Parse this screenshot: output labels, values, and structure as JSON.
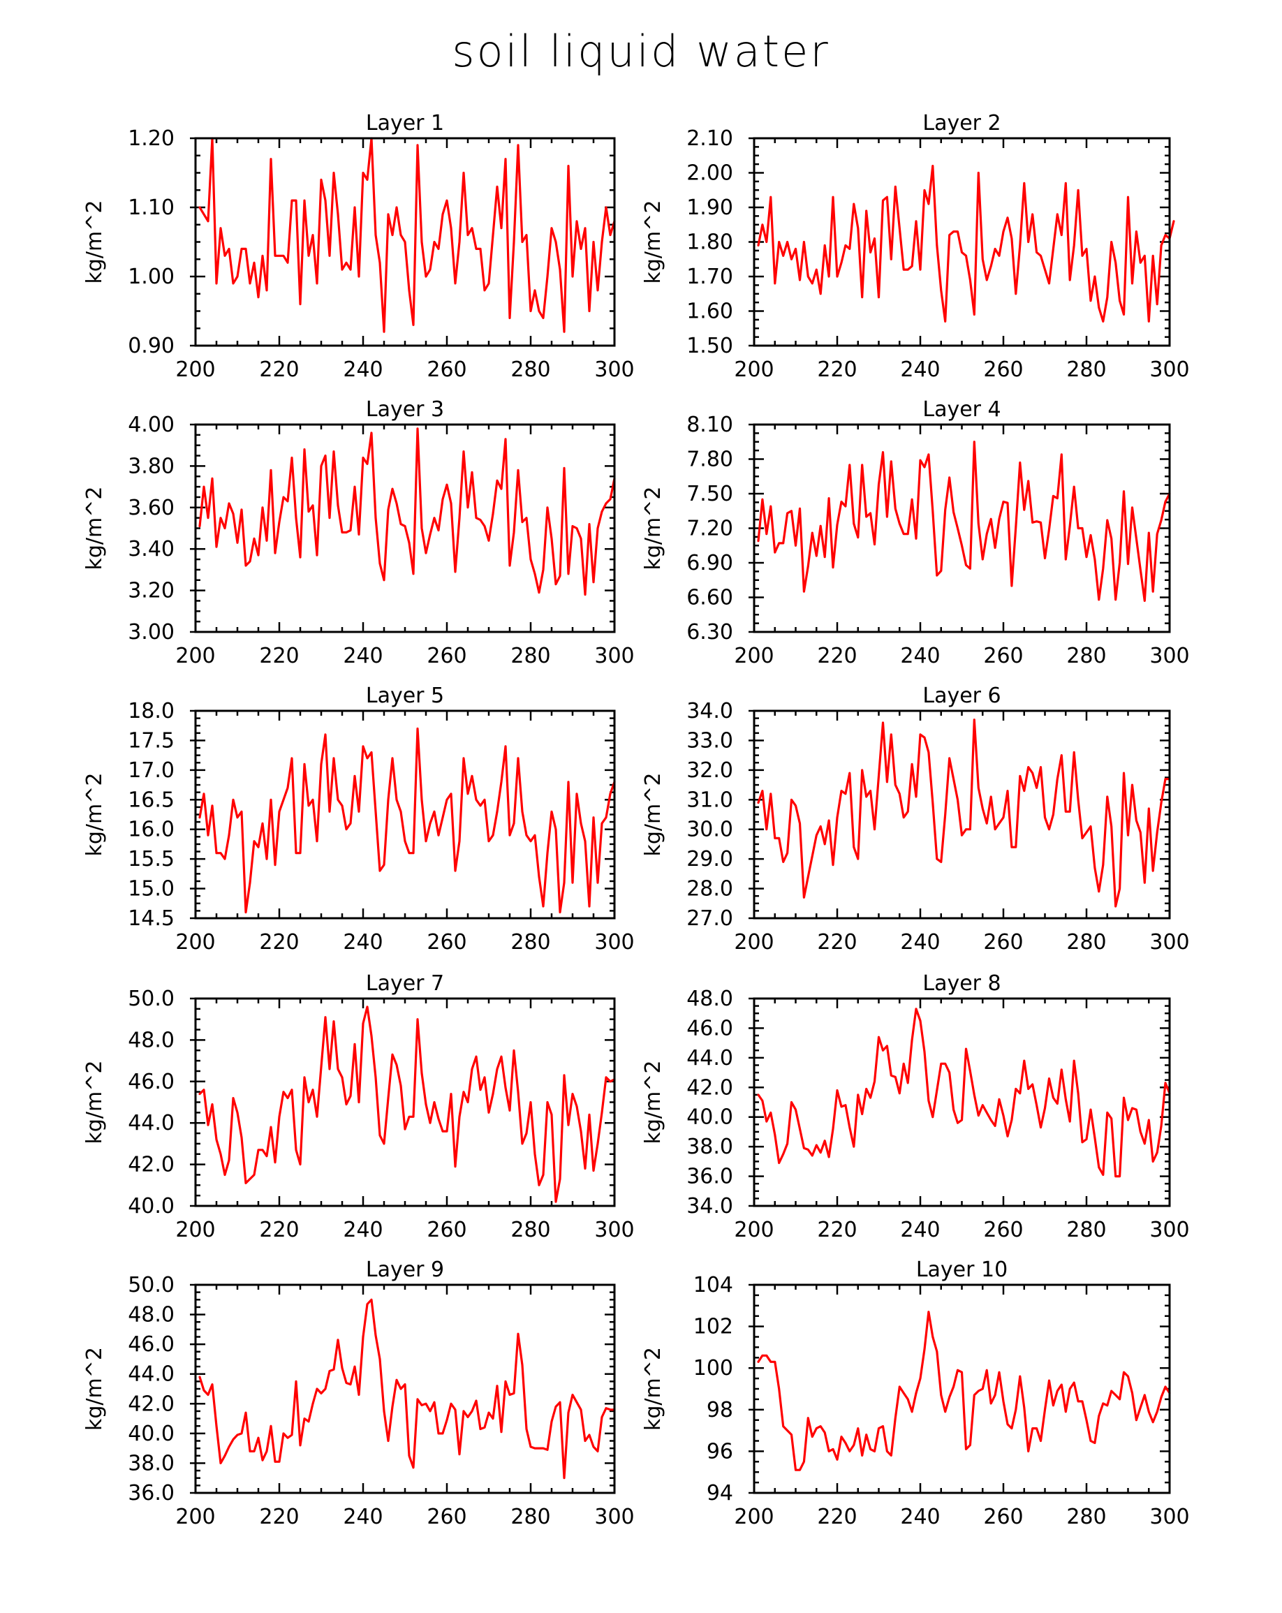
{
  "title": "soil liquid water",
  "chart_data": [
    {
      "type": "line",
      "title": "Layer 1",
      "ylabel": "kg/m^2",
      "xlim": [
        200,
        300
      ],
      "ylim": [
        0.9,
        1.2
      ],
      "xticks": [
        "200",
        "220",
        "240",
        "260",
        "280",
        "300"
      ],
      "yticks": [
        "0.90",
        "1.00",
        "1.10",
        "1.20"
      ],
      "x_start": 201,
      "values": [
        1.1,
        1.09,
        1.08,
        1.2,
        0.99,
        1.07,
        1.03,
        1.04,
        0.99,
        1.0,
        1.04,
        1.04,
        0.99,
        1.02,
        0.97,
        1.03,
        0.98,
        1.17,
        1.03,
        1.03,
        1.03,
        1.02,
        1.11,
        1.11,
        0.96,
        1.11,
        1.03,
        1.06,
        0.99,
        1.14,
        1.11,
        1.03,
        1.15,
        1.09,
        1.01,
        1.02,
        1.01,
        1.1,
        1.0,
        1.15,
        1.14,
        1.2,
        1.06,
        1.02,
        0.92,
        1.09,
        1.06,
        1.1,
        1.06,
        1.05,
        0.98,
        0.93,
        1.19,
        1.05,
        1.0,
        1.01,
        1.05,
        1.04,
        1.09,
        1.11,
        1.07,
        0.99,
        1.05,
        1.15,
        1.06,
        1.07,
        1.04,
        1.04,
        0.98,
        0.99,
        1.06,
        1.13,
        1.07,
        1.17,
        0.94,
        1.05,
        1.19,
        1.05,
        1.06,
        0.95,
        0.98,
        0.95,
        0.94,
        1.0,
        1.07,
        1.05,
        1.01,
        0.92,
        1.16,
        1.0,
        1.08,
        1.04,
        1.07,
        0.95,
        1.05,
        0.98,
        1.05,
        1.1,
        1.06,
        1.08
      ]
    },
    {
      "type": "line",
      "title": "Layer 2",
      "ylabel": "kg/m^2",
      "xlim": [
        200,
        300
      ],
      "ylim": [
        1.5,
        2.1
      ],
      "xticks": [
        "200",
        "220",
        "240",
        "260",
        "280",
        "300"
      ],
      "yticks": [
        "1.50",
        "1.60",
        "1.70",
        "1.80",
        "1.90",
        "2.00",
        "2.10"
      ],
      "x_start": 201,
      "values": [
        1.79,
        1.85,
        1.8,
        1.93,
        1.68,
        1.8,
        1.76,
        1.8,
        1.75,
        1.78,
        1.69,
        1.8,
        1.7,
        1.68,
        1.72,
        1.65,
        1.79,
        1.7,
        1.93,
        1.7,
        1.74,
        1.79,
        1.78,
        1.91,
        1.84,
        1.64,
        1.89,
        1.77,
        1.81,
        1.64,
        1.92,
        1.93,
        1.75,
        1.96,
        1.84,
        1.72,
        1.72,
        1.73,
        1.86,
        1.72,
        1.95,
        1.91,
        2.02,
        1.79,
        1.66,
        1.57,
        1.82,
        1.83,
        1.83,
        1.77,
        1.76,
        1.69,
        1.59,
        2.0,
        1.75,
        1.69,
        1.73,
        1.78,
        1.76,
        1.83,
        1.87,
        1.81,
        1.65,
        1.79,
        1.97,
        1.8,
        1.88,
        1.77,
        1.76,
        1.72,
        1.68,
        1.78,
        1.88,
        1.82,
        1.97,
        1.69,
        1.79,
        1.95,
        1.76,
        1.78,
        1.63,
        1.7,
        1.61,
        1.57,
        1.64,
        1.8,
        1.74,
        1.63,
        1.59,
        1.93,
        1.68,
        1.83,
        1.74,
        1.76,
        1.57,
        1.76,
        1.62,
        1.79,
        1.82,
        1.81,
        1.86
      ]
    },
    {
      "type": "line",
      "title": "Layer 3",
      "ylabel": "kg/m^2",
      "xlim": [
        200,
        300
      ],
      "ylim": [
        3.0,
        4.0
      ],
      "xticks": [
        "200",
        "220",
        "240",
        "260",
        "280",
        "300"
      ],
      "yticks": [
        "3.00",
        "3.20",
        "3.40",
        "3.60",
        "3.80",
        "4.00"
      ],
      "x_start": 201,
      "values": [
        3.51,
        3.7,
        3.55,
        3.74,
        3.41,
        3.55,
        3.5,
        3.62,
        3.57,
        3.43,
        3.59,
        3.32,
        3.34,
        3.45,
        3.37,
        3.6,
        3.44,
        3.78,
        3.38,
        3.53,
        3.65,
        3.63,
        3.84,
        3.55,
        3.36,
        3.88,
        3.58,
        3.61,
        3.37,
        3.8,
        3.85,
        3.55,
        3.87,
        3.61,
        3.48,
        3.48,
        3.49,
        3.7,
        3.47,
        3.84,
        3.81,
        3.96,
        3.55,
        3.33,
        3.25,
        3.59,
        3.69,
        3.62,
        3.52,
        3.51,
        3.43,
        3.28,
        3.98,
        3.5,
        3.38,
        3.47,
        3.55,
        3.49,
        3.64,
        3.71,
        3.62,
        3.29,
        3.55,
        3.87,
        3.6,
        3.77,
        3.55,
        3.54,
        3.51,
        3.44,
        3.57,
        3.73,
        3.69,
        3.93,
        3.32,
        3.48,
        3.78,
        3.53,
        3.55,
        3.35,
        3.28,
        3.19,
        3.3,
        3.6,
        3.45,
        3.23,
        3.27,
        3.79,
        3.28,
        3.51,
        3.5,
        3.45,
        3.18,
        3.52,
        3.24,
        3.5,
        3.58,
        3.62,
        3.64,
        3.74
      ]
    },
    {
      "type": "line",
      "title": "Layer 4",
      "ylabel": "kg/m^2",
      "xlim": [
        200,
        300
      ],
      "ylim": [
        6.3,
        8.1
      ],
      "xticks": [
        "200",
        "220",
        "240",
        "260",
        "280",
        "300"
      ],
      "yticks": [
        "6.30",
        "6.60",
        "6.90",
        "7.20",
        "7.50",
        "7.80",
        "8.10"
      ],
      "x_start": 201,
      "values": [
        7.09,
        7.45,
        7.15,
        7.39,
        6.99,
        7.07,
        7.07,
        7.33,
        7.35,
        7.05,
        7.37,
        6.65,
        6.87,
        7.16,
        6.96,
        7.22,
        6.95,
        7.46,
        6.86,
        7.23,
        7.43,
        7.39,
        7.75,
        7.24,
        7.12,
        7.75,
        7.3,
        7.33,
        7.06,
        7.58,
        7.86,
        7.3,
        7.78,
        7.37,
        7.24,
        7.15,
        7.15,
        7.45,
        7.11,
        7.79,
        7.73,
        7.84,
        7.35,
        6.79,
        6.83,
        7.36,
        7.64,
        7.34,
        7.2,
        7.05,
        6.88,
        6.85,
        7.95,
        7.24,
        6.93,
        7.15,
        7.28,
        7.03,
        7.28,
        7.43,
        7.42,
        6.7,
        7.21,
        7.77,
        7.36,
        7.61,
        7.25,
        7.26,
        7.25,
        6.94,
        7.19,
        7.48,
        7.46,
        7.84,
        6.93,
        7.22,
        7.56,
        7.2,
        7.2,
        6.95,
        7.14,
        6.93,
        6.58,
        6.85,
        7.27,
        7.11,
        6.58,
        6.9,
        7.52,
        6.89,
        7.38,
        7.11,
        6.84,
        6.57,
        7.16,
        6.65,
        7.15,
        7.27,
        7.43,
        7.5
      ]
    },
    {
      "type": "line",
      "title": "Layer 5",
      "ylabel": "kg/m^2",
      "xlim": [
        200,
        300
      ],
      "ylim": [
        14.5,
        18.0
      ],
      "xticks": [
        "200",
        "220",
        "240",
        "260",
        "280",
        "300"
      ],
      "yticks": [
        "14.5",
        "15.0",
        "15.5",
        "16.0",
        "16.5",
        "17.0",
        "17.5",
        "18.0"
      ],
      "x_start": 201,
      "values": [
        16.2,
        16.6,
        15.9,
        16.4,
        15.6,
        15.6,
        15.5,
        15.9,
        16.5,
        16.2,
        16.3,
        14.6,
        15.1,
        15.8,
        15.7,
        16.1,
        15.5,
        16.5,
        15.4,
        16.3,
        16.5,
        16.7,
        17.2,
        15.6,
        15.6,
        17.1,
        16.4,
        16.5,
        15.8,
        17.1,
        17.6,
        16.3,
        17.2,
        16.5,
        16.4,
        16.0,
        16.1,
        16.9,
        16.3,
        17.4,
        17.2,
        17.3,
        16.3,
        15.3,
        15.4,
        16.5,
        17.2,
        16.5,
        16.3,
        15.8,
        15.6,
        15.6,
        17.7,
        16.5,
        15.8,
        16.1,
        16.3,
        15.9,
        16.2,
        16.5,
        16.6,
        15.3,
        15.8,
        17.2,
        16.6,
        16.9,
        16.5,
        16.4,
        16.5,
        15.8,
        15.9,
        16.3,
        16.8,
        17.4,
        15.9,
        16.1,
        17.2,
        16.3,
        15.9,
        15.8,
        15.9,
        15.2,
        14.7,
        15.6,
        16.3,
        16.0,
        14.6,
        15.1,
        16.8,
        15.1,
        16.6,
        16.1,
        15.8,
        14.7,
        16.2,
        15.1,
        16.1,
        16.2,
        16.6,
        16.8
      ]
    },
    {
      "type": "line",
      "title": "Layer 6",
      "ylabel": "kg/m^2",
      "xlim": [
        200,
        300
      ],
      "ylim": [
        27.0,
        34.0
      ],
      "xticks": [
        "200",
        "220",
        "240",
        "260",
        "280",
        "300"
      ],
      "yticks": [
        "27.0",
        "28.0",
        "29.0",
        "30.0",
        "31.0",
        "32.0",
        "33.0",
        "34.0"
      ],
      "x_start": 201,
      "values": [
        30.9,
        31.3,
        30.0,
        31.2,
        29.7,
        29.7,
        28.9,
        29.2,
        31.0,
        30.8,
        30.2,
        27.7,
        28.4,
        29.1,
        29.8,
        30.1,
        29.5,
        30.3,
        28.8,
        30.4,
        31.3,
        31.2,
        31.9,
        29.4,
        29.0,
        32.0,
        31.1,
        31.3,
        30.0,
        31.8,
        33.6,
        31.6,
        33.2,
        31.5,
        31.2,
        30.4,
        30.6,
        32.2,
        31.1,
        33.2,
        33.1,
        32.6,
        30.9,
        29.0,
        28.9,
        30.5,
        32.4,
        31.7,
        31.0,
        29.8,
        30.0,
        30.0,
        33.7,
        31.4,
        30.7,
        30.2,
        31.1,
        30.0,
        30.2,
        30.4,
        31.3,
        29.4,
        29.4,
        31.8,
        31.3,
        32.1,
        31.9,
        31.4,
        32.1,
        30.4,
        30.0,
        30.5,
        31.7,
        32.5,
        30.6,
        30.6,
        32.6,
        31.0,
        29.7,
        29.9,
        30.1,
        28.7,
        27.9,
        28.8,
        31.1,
        30.1,
        27.4,
        28.0,
        31.9,
        29.8,
        31.5,
        30.3,
        29.9,
        28.2,
        30.7,
        28.6,
        29.9,
        30.9,
        31.7,
        31.7
      ]
    },
    {
      "type": "line",
      "title": "Layer 7",
      "ylabel": "kg/m^2",
      "xlim": [
        200,
        300
      ],
      "ylim": [
        40.0,
        50.0
      ],
      "xticks": [
        "200",
        "220",
        "240",
        "260",
        "280",
        "300"
      ],
      "yticks": [
        "40.0",
        "42.0",
        "44.0",
        "46.0",
        "48.0",
        "50.0"
      ],
      "x_start": 201,
      "values": [
        45.4,
        45.6,
        43.9,
        44.9,
        43.2,
        42.5,
        41.5,
        42.2,
        45.2,
        44.5,
        43.3,
        41.1,
        41.3,
        41.5,
        42.7,
        42.7,
        42.4,
        43.8,
        42.1,
        44.3,
        45.5,
        45.2,
        45.6,
        42.7,
        42.0,
        46.2,
        45.0,
        45.6,
        44.3,
        46.7,
        49.1,
        46.6,
        48.9,
        46.6,
        46.2,
        44.9,
        45.3,
        47.8,
        45.0,
        48.8,
        49.6,
        48.2,
        46.2,
        43.4,
        43.0,
        45.2,
        47.3,
        46.8,
        45.8,
        43.7,
        44.3,
        44.3,
        49.0,
        46.4,
        44.9,
        44.0,
        45.0,
        44.2,
        43.6,
        43.6,
        45.4,
        41.9,
        44.3,
        45.5,
        45.0,
        46.6,
        47.2,
        45.6,
        46.2,
        44.5,
        45.4,
        46.6,
        47.2,
        45.7,
        44.6,
        47.5,
        45.5,
        43.0,
        43.5,
        45.0,
        42.5,
        41.0,
        41.5,
        45.0,
        44.4,
        40.2,
        41.3,
        46.3,
        43.9,
        45.4,
        44.8,
        43.6,
        41.8,
        44.4,
        41.7,
        43.0,
        44.5,
        46.2,
        46.0,
        46.1
      ]
    },
    {
      "type": "line",
      "title": "Layer 8",
      "ylabel": "kg/m^2",
      "xlim": [
        200,
        300
      ],
      "ylim": [
        34.0,
        48.0
      ],
      "xticks": [
        "200",
        "220",
        "240",
        "260",
        "280",
        "300"
      ],
      "yticks": [
        "34.0",
        "36.0",
        "38.0",
        "40.0",
        "42.0",
        "44.0",
        "46.0",
        "48.0"
      ],
      "x_start": 201,
      "values": [
        41.5,
        41.1,
        39.7,
        40.3,
        38.8,
        36.9,
        37.5,
        38.2,
        41.0,
        40.5,
        39.2,
        37.9,
        37.8,
        37.4,
        38.1,
        37.6,
        38.4,
        37.3,
        39.2,
        41.8,
        40.7,
        40.8,
        39.3,
        38.0,
        41.5,
        40.2,
        41.9,
        41.3,
        42.4,
        45.4,
        44.5,
        44.8,
        42.8,
        42.7,
        41.6,
        43.6,
        42.3,
        45.2,
        47.3,
        46.5,
        44.4,
        41.1,
        40.0,
        41.8,
        43.6,
        43.6,
        43.0,
        40.5,
        39.6,
        39.8,
        44.6,
        43.1,
        41.5,
        40.1,
        40.8,
        40.3,
        39.8,
        39.4,
        41.2,
        40.1,
        38.7,
        39.8,
        41.9,
        41.6,
        43.8,
        41.9,
        42.2,
        40.8,
        39.3,
        40.6,
        42.6,
        41.3,
        40.9,
        43.2,
        41.2,
        39.7,
        43.8,
        41.6,
        38.3,
        38.5,
        40.5,
        38.6,
        36.6,
        36.1,
        40.3,
        39.9,
        36.0,
        36.0,
        41.3,
        39.8,
        40.6,
        40.5,
        39.0,
        38.2,
        39.8,
        37.0,
        37.6,
        39.4,
        42.3,
        41.6
      ]
    },
    {
      "type": "line",
      "title": "Layer 9",
      "ylabel": "kg/m^2",
      "xlim": [
        200,
        300
      ],
      "ylim": [
        36.0,
        50.0
      ],
      "xticks": [
        "200",
        "220",
        "240",
        "260",
        "280",
        "300"
      ],
      "yticks": [
        "36.0",
        "38.0",
        "40.0",
        "42.0",
        "44.0",
        "46.0",
        "48.0",
        "50.0"
      ],
      "x_start": 201,
      "values": [
        43.8,
        42.9,
        42.6,
        43.3,
        40.5,
        38.0,
        38.5,
        39.1,
        39.6,
        39.9,
        40.0,
        41.4,
        38.8,
        38.8,
        39.7,
        38.2,
        38.8,
        40.5,
        38.1,
        38.1,
        40.0,
        39.7,
        39.9,
        43.5,
        39.2,
        41.0,
        40.8,
        42.0,
        43.0,
        42.7,
        43.0,
        44.2,
        44.3,
        46.3,
        44.4,
        43.4,
        43.3,
        44.5,
        42.6,
        46.5,
        48.7,
        49.0,
        46.6,
        45.0,
        41.5,
        39.5,
        41.8,
        43.6,
        43.0,
        43.3,
        38.5,
        37.7,
        42.3,
        41.9,
        42.0,
        41.5,
        42.1,
        40.0,
        40.0,
        40.9,
        42.0,
        41.6,
        38.6,
        41.5,
        41.1,
        41.5,
        42.2,
        40.3,
        40.4,
        41.4,
        41.0,
        43.2,
        40.1,
        43.5,
        42.6,
        42.7,
        46.7,
        44.6,
        40.3,
        39.1,
        39.0,
        39.0,
        39.0,
        38.9,
        40.8,
        41.8,
        42.1,
        37.0,
        41.4,
        42.6,
        42.1,
        41.6,
        39.5,
        39.9,
        39.1,
        38.8,
        41.1,
        41.7,
        41.6,
        41.6
      ]
    },
    {
      "type": "line",
      "title": "Layer 10",
      "ylabel": "kg/m^2",
      "xlim": [
        200,
        300
      ],
      "ylim": [
        94,
        104
      ],
      "xticks": [
        "200",
        "220",
        "240",
        "260",
        "280",
        "300"
      ],
      "yticks": [
        "94",
        "96",
        "98",
        "100",
        "102",
        "104"
      ],
      "x_start": 201,
      "values": [
        100.3,
        100.6,
        100.6,
        100.3,
        100.3,
        99.0,
        97.2,
        97.0,
        96.8,
        95.1,
        95.1,
        95.5,
        97.6,
        96.7,
        97.1,
        97.2,
        96.9,
        96.0,
        96.1,
        95.6,
        96.7,
        96.4,
        96.0,
        96.3,
        97.1,
        95.8,
        96.8,
        96.1,
        96.0,
        97.1,
        97.2,
        96.0,
        95.8,
        97.6,
        99.1,
        98.8,
        98.5,
        97.9,
        98.8,
        99.5,
        100.9,
        102.7,
        101.5,
        100.8,
        98.7,
        97.9,
        98.6,
        99.1,
        99.9,
        99.8,
        96.1,
        96.3,
        98.7,
        98.9,
        99.0,
        99.9,
        98.3,
        98.7,
        99.8,
        98.4,
        97.3,
        97.1,
        98.0,
        99.6,
        98.1,
        96.0,
        97.1,
        97.1,
        96.5,
        98.0,
        99.4,
        98.2,
        98.9,
        99.2,
        97.9,
        99.0,
        99.3,
        98.4,
        98.4,
        97.5,
        96.5,
        96.4,
        97.7,
        98.3,
        98.2,
        98.9,
        98.7,
        98.5,
        99.8,
        99.6,
        98.8,
        97.5,
        98.1,
        98.7,
        97.9,
        97.4,
        97.9,
        98.6,
        99.1,
        98.8
      ]
    }
  ]
}
